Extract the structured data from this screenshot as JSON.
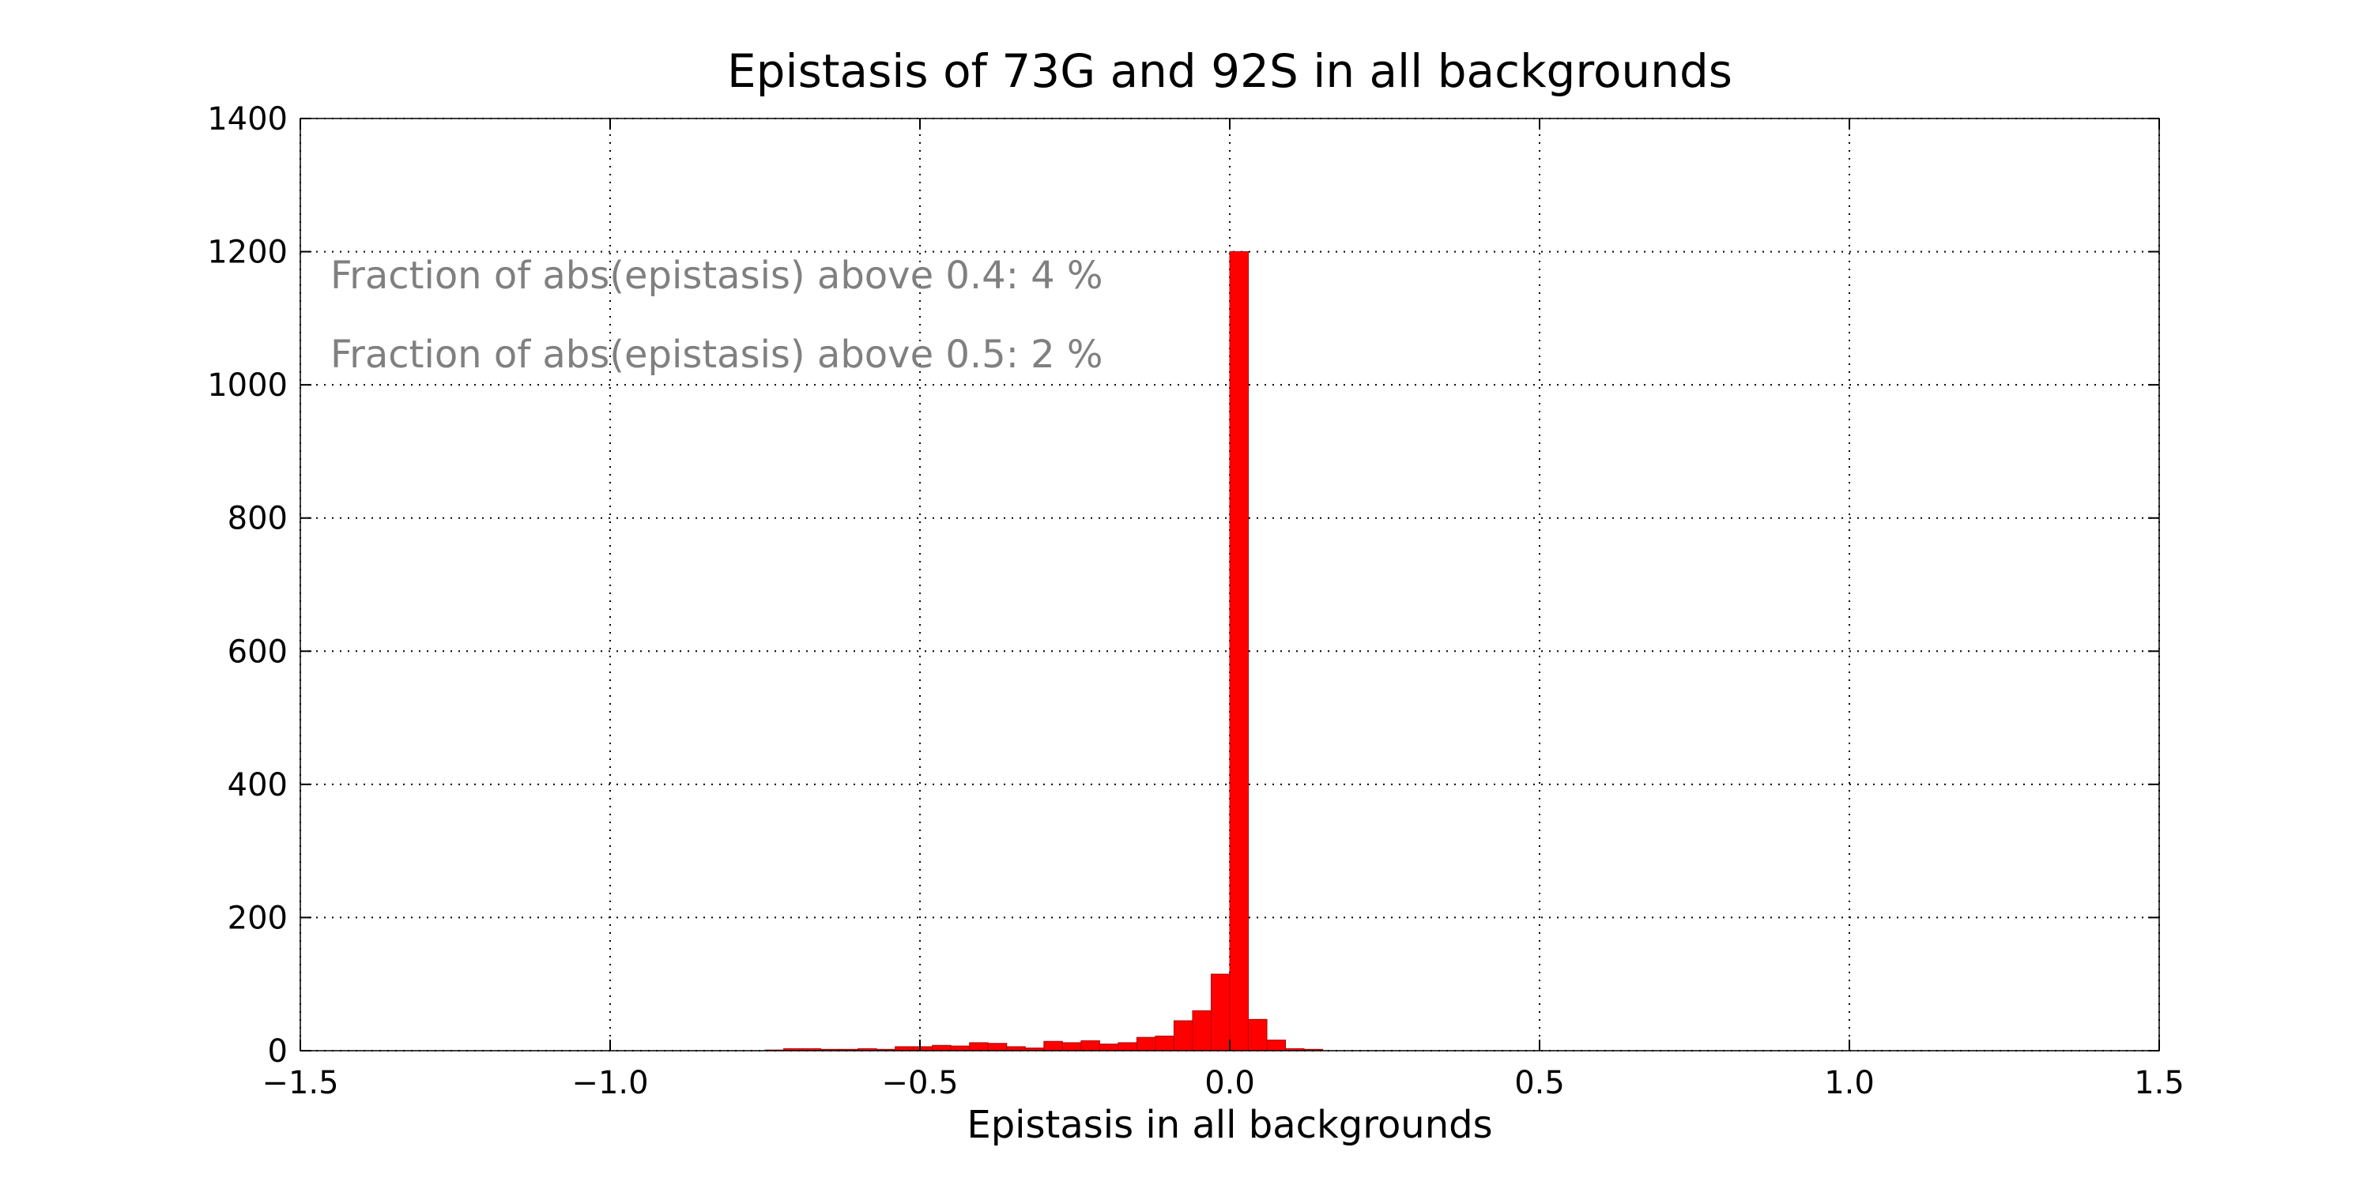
{
  "chart_data": {
    "type": "bar",
    "title": "Epistasis of 73G and 92S in all backgrounds",
    "xlabel": "Epistasis in all backgrounds",
    "ylabel": "",
    "xlim": [
      -1.5,
      1.5
    ],
    "ylim": [
      0,
      1400
    ],
    "grid": true,
    "xticks": [
      "−1.5",
      "−1.0",
      "−0.5",
      "0.0",
      "0.5",
      "1.0",
      "1.5"
    ],
    "xtick_values": [
      -1.5,
      -1.0,
      -0.5,
      0.0,
      0.5,
      1.0,
      1.5
    ],
    "yticks": [
      "0",
      "200",
      "400",
      "600",
      "800",
      "1000",
      "1200",
      "1400"
    ],
    "ytick_values": [
      0,
      200,
      400,
      600,
      800,
      1000,
      1200,
      1400
    ],
    "bar_color": "#ff0000",
    "bin_width": 0.03,
    "bins": [
      {
        "x": -0.75,
        "value": 1
      },
      {
        "x": -0.72,
        "value": 3
      },
      {
        "x": -0.69,
        "value": 3
      },
      {
        "x": -0.66,
        "value": 2
      },
      {
        "x": -0.63,
        "value": 2
      },
      {
        "x": -0.6,
        "value": 3
      },
      {
        "x": -0.57,
        "value": 2
      },
      {
        "x": -0.54,
        "value": 6
      },
      {
        "x": -0.51,
        "value": 6
      },
      {
        "x": -0.48,
        "value": 8
      },
      {
        "x": -0.45,
        "value": 7
      },
      {
        "x": -0.42,
        "value": 12
      },
      {
        "x": -0.39,
        "value": 11
      },
      {
        "x": -0.36,
        "value": 6
      },
      {
        "x": -0.33,
        "value": 4
      },
      {
        "x": -0.3,
        "value": 14
      },
      {
        "x": -0.27,
        "value": 12
      },
      {
        "x": -0.24,
        "value": 15
      },
      {
        "x": -0.21,
        "value": 10
      },
      {
        "x": -0.18,
        "value": 12
      },
      {
        "x": -0.15,
        "value": 20
      },
      {
        "x": -0.12,
        "value": 22
      },
      {
        "x": -0.09,
        "value": 45
      },
      {
        "x": -0.06,
        "value": 60
      },
      {
        "x": -0.03,
        "value": 115
      },
      {
        "x": 0.0,
        "value": 1200
      },
      {
        "x": 0.03,
        "value": 47
      },
      {
        "x": 0.06,
        "value": 16
      },
      {
        "x": 0.09,
        "value": 3
      },
      {
        "x": 0.12,
        "value": 2
      }
    ],
    "annotations": [
      "Fraction of abs(epistasis) above 0.4: 4 %",
      "Fraction of abs(epistasis) above 0.5: 2 %"
    ]
  }
}
